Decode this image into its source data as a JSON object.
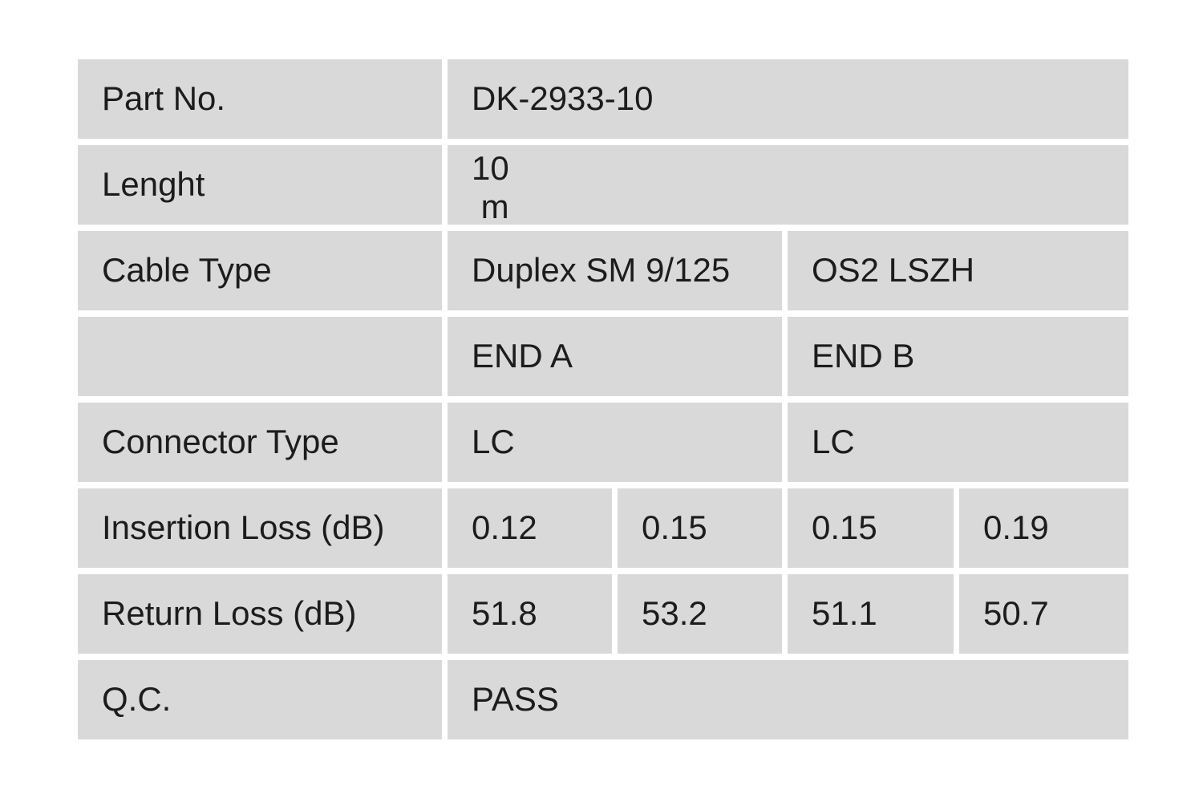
{
  "table": {
    "colors": {
      "cell_background": "#d9d9d9",
      "gap": "#ffffff",
      "text": "#1c1c1c"
    },
    "rows": {
      "part_no": {
        "label": "Part No.",
        "value": "DK-2933-10"
      },
      "length": {
        "label": "Lenght",
        "value": "10\n m"
      },
      "cable_type": {
        "label": "Cable Type",
        "end_a": "Duplex SM 9/125",
        "end_b": "OS2 LSZH"
      },
      "ends": {
        "label": "",
        "end_a": "END A",
        "end_b": "END B"
      },
      "connector_type": {
        "label": "Connector Type",
        "end_a": "LC",
        "end_b": "LC"
      },
      "insertion_loss": {
        "label": "Insertion Loss (dB)",
        "a1": "0.12",
        "a2": "0.15",
        "b1": "0.15",
        "b2": "0.19"
      },
      "return_loss": {
        "label": "Return Loss (dB)",
        "a1": "51.8",
        "a2": "53.2",
        "b1": "51.1",
        "b2": "50.7"
      },
      "qc": {
        "label": "Q.C.",
        "value": "PASS"
      }
    }
  }
}
